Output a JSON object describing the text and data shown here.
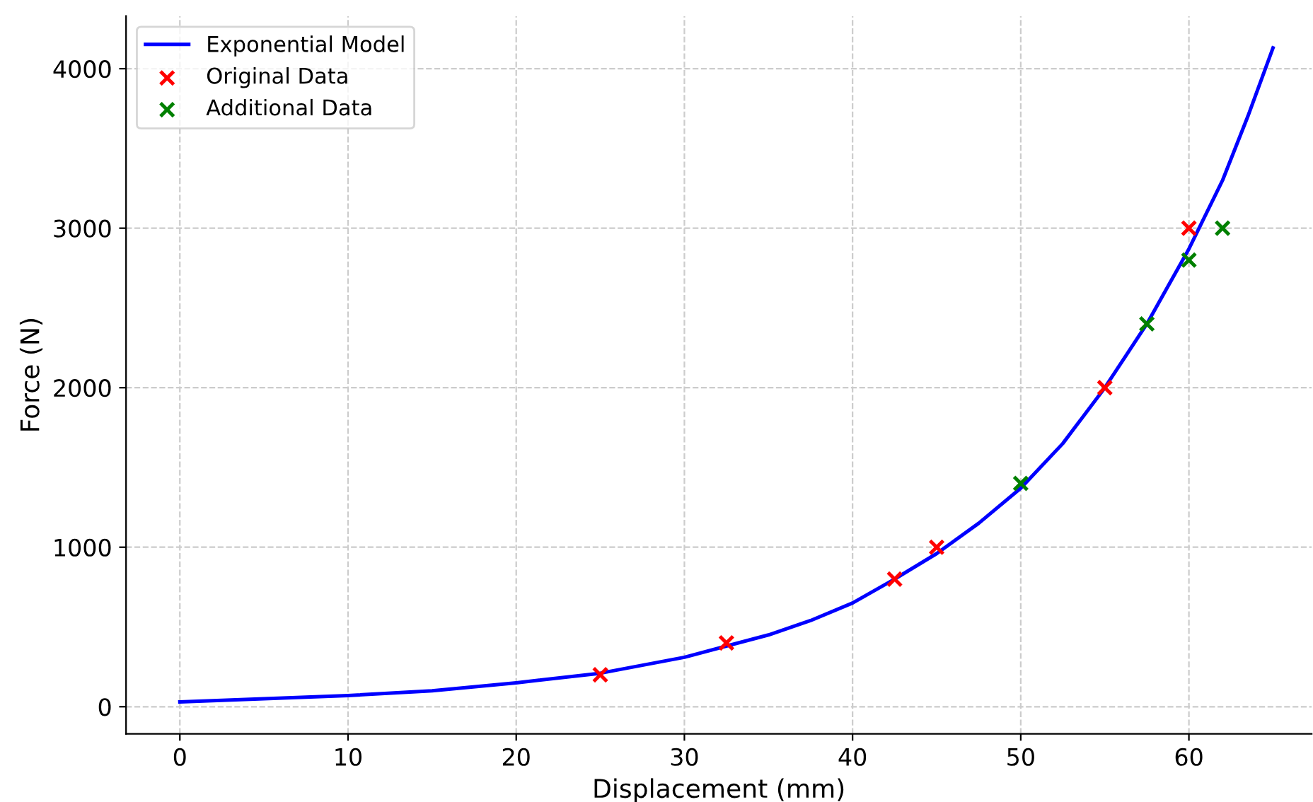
{
  "chart_data": {
    "type": "scatter",
    "xlabel": "Displacement (mm)",
    "ylabel": "Force (N)",
    "xlim": [
      -3.2,
      67.3
    ],
    "ylim": [
      -170,
      4330
    ],
    "xticks": [
      0,
      10,
      20,
      30,
      40,
      50,
      60
    ],
    "yticks": [
      0,
      1000,
      2000,
      3000,
      4000
    ],
    "grid": true,
    "legend": "top left",
    "series": [
      {
        "name": "Exponential Model",
        "type": "line",
        "color": "#0000ff",
        "marker": "none",
        "line_style": "solid",
        "x": [
          0,
          5,
          10,
          15,
          20,
          25,
          30,
          35,
          37.5,
          40,
          42.5,
          45,
          47.5,
          50,
          52.5,
          55,
          57.5,
          60,
          62,
          63.5,
          65
        ],
        "values": [
          30,
          50,
          70,
          100,
          150,
          210,
          310,
          450,
          540,
          650,
          800,
          960,
          1150,
          1370,
          1650,
          2000,
          2400,
          2870,
          3300,
          3700,
          4130
        ]
      },
      {
        "name": "Original Data",
        "color": "#ff0000",
        "marker": "cross",
        "x": [
          25,
          32.5,
          42.5,
          45,
          55,
          60
        ],
        "values": [
          200,
          400,
          800,
          1000,
          2000,
          3000
        ]
      },
      {
        "name": "Additional Data",
        "color": "#008000",
        "marker": "cross",
        "x": [
          50,
          57.5,
          60,
          62
        ],
        "values": [
          1400,
          2400,
          2800,
          3000
        ]
      }
    ]
  }
}
